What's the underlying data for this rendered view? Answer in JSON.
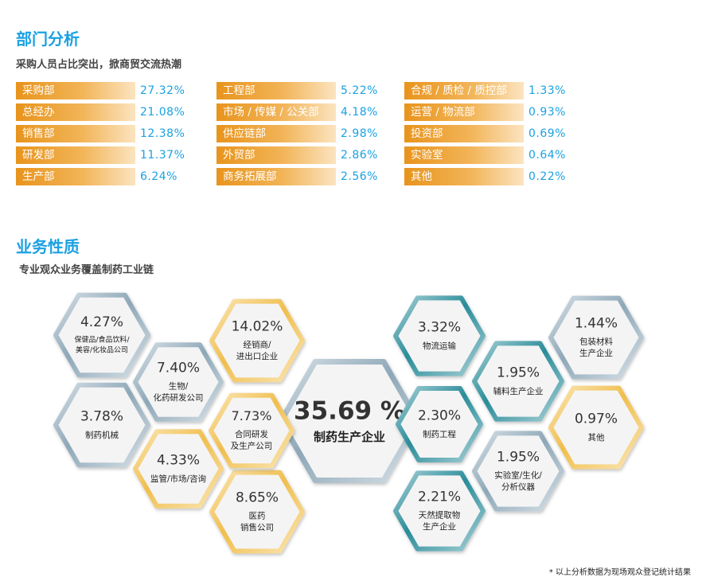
{
  "section1": {
    "title": "部门分析",
    "subtitle": "采购人员占比突出，掀商贸交流热潮"
  },
  "section2": {
    "title": "业务性质",
    "subtitle": "专业观众业务覆盖制药工业链"
  },
  "footnote": "* 以上分析数据为现场观众登记统计结果",
  "colors": {
    "title_blue": "#1ba1e2",
    "bar_orange": "#e8941d",
    "hex_gold": "#f0be4e",
    "hex_slate": "#8ea8b8",
    "hex_teal": "#2a8d9a",
    "hex_fill": "#f4f4f4"
  },
  "chart_data": [
    {
      "type": "bar",
      "title": "部门分析",
      "unit": "%",
      "columns": [
        [
          {
            "label": "采购部",
            "value": 27.32,
            "display": "27.32%"
          },
          {
            "label": "总经办",
            "value": 21.08,
            "display": "21.08%"
          },
          {
            "label": "销售部",
            "value": 12.38,
            "display": "12.38%"
          },
          {
            "label": "研发部",
            "value": 11.37,
            "display": "11.37%"
          },
          {
            "label": "生产部",
            "value": 6.24,
            "display": "6.24%"
          }
        ],
        [
          {
            "label": "工程部",
            "value": 5.22,
            "display": "5.22%"
          },
          {
            "label": "市场 / 传媒 / 公关部",
            "value": 4.18,
            "display": "4.18%"
          },
          {
            "label": "供应链部",
            "value": 2.98,
            "display": "2.98%"
          },
          {
            "label": "外贸部",
            "value": 2.86,
            "display": "2.86%"
          },
          {
            "label": "商务拓展部",
            "value": 2.56,
            "display": "2.56%"
          }
        ],
        [
          {
            "label": "合规 / 质检 / 质控部",
            "value": 1.33,
            "display": "1.33%"
          },
          {
            "label": "运营 / 物流部",
            "value": 0.93,
            "display": "0.93%"
          },
          {
            "label": "投资部",
            "value": 0.69,
            "display": "0.69%"
          },
          {
            "label": "实验室",
            "value": 0.64,
            "display": "0.64%"
          },
          {
            "label": "其他",
            "value": 0.22,
            "display": "0.22%"
          }
        ]
      ]
    },
    {
      "type": "honeycomb",
      "title": "业务性质",
      "unit": "%",
      "items": [
        {
          "value": 35.69,
          "display": "35.69 %",
          "label": "制药生产企业",
          "color": "slate"
        },
        {
          "value": 14.02,
          "display": "14.02%",
          "label": "经销商/\n进出口企业",
          "color": "gold"
        },
        {
          "value": 8.65,
          "display": "8.65%",
          "label": "医药\n销售公司",
          "color": "gold"
        },
        {
          "value": 7.73,
          "display": "7.73%",
          "label": "合同研发\n及生产公司",
          "color": "gold"
        },
        {
          "value": 7.4,
          "display": "7.40%",
          "label": "生物/\n化药研发公司",
          "color": "slate"
        },
        {
          "value": 4.33,
          "display": "4.33%",
          "label": "监管/市场/咨询",
          "color": "gold"
        },
        {
          "value": 4.27,
          "display": "4.27%",
          "label": "保健品/食品饮料/\n美容/化妆品公司",
          "color": "slate"
        },
        {
          "value": 3.78,
          "display": "3.78%",
          "label": "制药机械",
          "color": "slate"
        },
        {
          "value": 3.32,
          "display": "3.32%",
          "label": "物流运输",
          "color": "teal"
        },
        {
          "value": 2.3,
          "display": "2.30%",
          "label": "制药工程",
          "color": "teal"
        },
        {
          "value": 2.21,
          "display": "2.21%",
          "label": "天然提取物\n生产企业",
          "color": "teal"
        },
        {
          "value": 1.95,
          "display": "1.95%",
          "label": "辅料生产企业",
          "color": "teal"
        },
        {
          "value": 1.95,
          "display": "1.95%",
          "label": "实验室/生化/\n分析仪器",
          "color": "slate"
        },
        {
          "value": 1.44,
          "display": "1.44%",
          "label": "包装材料\n生产企业",
          "color": "slate"
        },
        {
          "value": 0.97,
          "display": "0.97%",
          "label": "其他",
          "color": "gold"
        }
      ]
    }
  ]
}
